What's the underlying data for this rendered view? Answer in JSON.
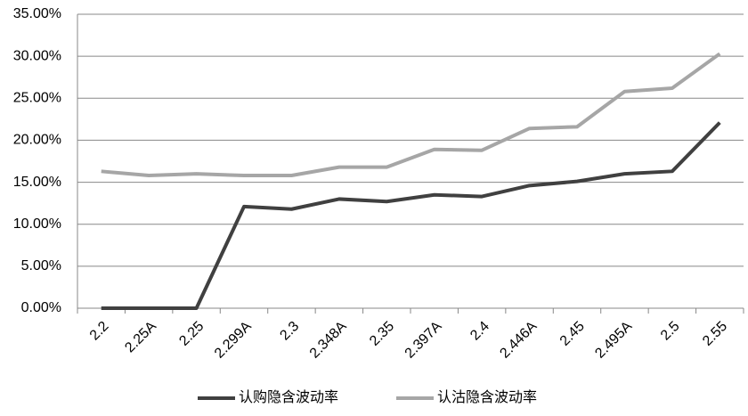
{
  "chart_data": {
    "type": "line",
    "categories": [
      "2.2",
      "2.25A",
      "2.25",
      "2.299A",
      "2.3",
      "2.348A",
      "2.35",
      "2.397A",
      "2.4",
      "2.446A",
      "2.45",
      "2.495A",
      "2.5",
      "2.55"
    ],
    "series": [
      {
        "name": "认购隐含波动率",
        "color": "#404040",
        "values": [
          0,
          0,
          0,
          12.1,
          11.8,
          13.0,
          12.7,
          13.5,
          13.3,
          14.6,
          15.1,
          16.0,
          16.3,
          22.1
        ]
      },
      {
        "name": "认沽隐含波动率",
        "color": "#a6a6a6",
        "values": [
          16.3,
          15.8,
          16.0,
          15.8,
          15.8,
          16.8,
          16.8,
          18.9,
          18.8,
          21.4,
          21.6,
          25.8,
          26.2,
          30.3
        ]
      }
    ],
    "ylim": [
      0,
      35
    ],
    "yticks": [
      {
        "value": 0,
        "label": "0.00%"
      },
      {
        "value": 5,
        "label": "5.00%"
      },
      {
        "value": 10,
        "label": "10.00%"
      },
      {
        "value": 15,
        "label": "15.00%"
      },
      {
        "value": 20,
        "label": "20.00%"
      },
      {
        "value": 25,
        "label": "25.00%"
      },
      {
        "value": 30,
        "label": "30.00%"
      },
      {
        "value": 35,
        "label": "35.00%"
      }
    ],
    "grid": true,
    "legend": "bottom"
  }
}
